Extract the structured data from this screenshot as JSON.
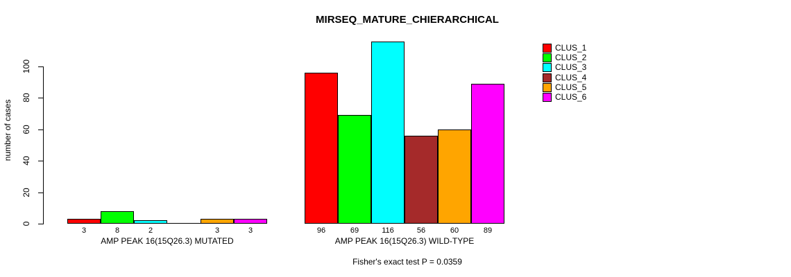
{
  "chart_data": {
    "type": "bar",
    "title": "MIRSEQ_MATURE_CHIERARCHICAL",
    "ylabel": "number of cases",
    "xlabel": "",
    "ylim": [
      0,
      116
    ],
    "yticks": [
      0,
      20,
      40,
      60,
      80,
      100
    ],
    "grid": false,
    "legend_position": "right",
    "categories": [
      "AMP PEAK 16(15Q26.3) MUTATED",
      "AMP PEAK 16(15Q26.3) WILD-TYPE"
    ],
    "series": [
      {
        "name": "CLUS_1",
        "color": "#FF0000",
        "values": [
          3,
          96
        ]
      },
      {
        "name": "CLUS_2",
        "color": "#00FF00",
        "values": [
          8,
          69
        ]
      },
      {
        "name": "CLUS_3",
        "color": "#00FFFF",
        "values": [
          2,
          116
        ]
      },
      {
        "name": "CLUS_4",
        "color": "#A52A2A",
        "values": [
          0,
          56
        ]
      },
      {
        "name": "CLUS_5",
        "color": "#FFA500",
        "values": [
          3,
          60
        ]
      },
      {
        "name": "CLUS_6",
        "color": "#FF00FF",
        "values": [
          3,
          89
        ]
      }
    ],
    "bar_value_labels_shown": true,
    "zero_value_labels_hidden": true,
    "annotation": "Fisher's exact test P = 0.0359",
    "colors": {
      "background": "#FFFFFF",
      "axis": "#000000",
      "text": "#000000"
    }
  }
}
